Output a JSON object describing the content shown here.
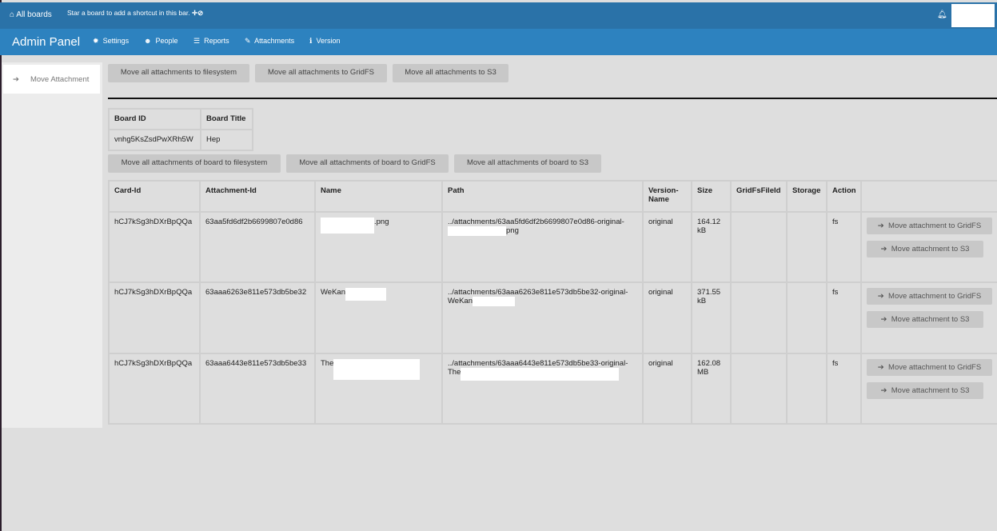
{
  "topbar": {
    "all_boards": "All boards",
    "hint": "Star a board to add a shortcut in this bar."
  },
  "header": {
    "title": "Admin Panel",
    "nav": [
      {
        "label": "Settings",
        "icon": "gear-icon"
      },
      {
        "label": "People",
        "icon": "users-icon"
      },
      {
        "label": "Reports",
        "icon": "list-icon"
      },
      {
        "label": "Attachments",
        "icon": "paperclip-icon"
      },
      {
        "label": "Version",
        "icon": "info-icon"
      }
    ]
  },
  "sidebar": {
    "items": [
      {
        "label": "Move Attachment",
        "icon": "arrow-right-icon"
      }
    ]
  },
  "global_buttons": [
    "Move all attachments to filesystem",
    "Move all attachments to GridFS",
    "Move all attachments to S3"
  ],
  "board": {
    "headers": [
      "Board ID",
      "Board Title"
    ],
    "id": "vnhg5KsZsdPwXRh5W",
    "title": "Hep"
  },
  "board_buttons": [
    "Move all attachments of board to filesystem",
    "Move all attachments of board to GridFS",
    "Move all attachments of board to S3"
  ],
  "attachments": {
    "headers": [
      "Card-Id",
      "Attachment-Id",
      "Name",
      "Path",
      "Version-Name",
      "Size",
      "GridFsFileId",
      "Storage",
      "Action",
      ""
    ],
    "rows": [
      {
        "card": "hCJ7kSg3hDXrBpQQa",
        "att": "63aa5fd6df2b6699807e0d86",
        "name_suffix": ".png",
        "path": "../attachments/63aa5fd6df2b6699807e0d86-original-",
        "path_suffix": "png",
        "version": "original",
        "size": "164.12 kB",
        "gridfs": "",
        "storage": "",
        "action": "fs"
      },
      {
        "card": "hCJ7kSg3hDXrBpQQa",
        "att": "63aaa6263e811e573db5be32",
        "name_prefix": "WeKan",
        "path": "../attachments/63aaa6263e811e573db5be32-original-",
        "path_prefix": "WeKan",
        "version": "original",
        "size": "371.55 kB",
        "gridfs": "",
        "storage": "",
        "action": "fs"
      },
      {
        "card": "hCJ7kSg3hDXrBpQQa",
        "att": "63aaa6443e811e573db5be33",
        "name_prefix": "The",
        "path": "../attachments/63aaa6443e811e573db5be33-original-",
        "path_prefix": "The",
        "version": "original",
        "size": "162.08 MB",
        "gridfs": "",
        "storage": "",
        "action": "fs"
      }
    ],
    "row_buttons": {
      "gridfs": "Move attachment to GridFS",
      "s3": "Move attachment to S3"
    }
  },
  "colors": {
    "topbar": "#2a72a8",
    "header": "#2d82bf",
    "button": "#c8c8c8"
  }
}
